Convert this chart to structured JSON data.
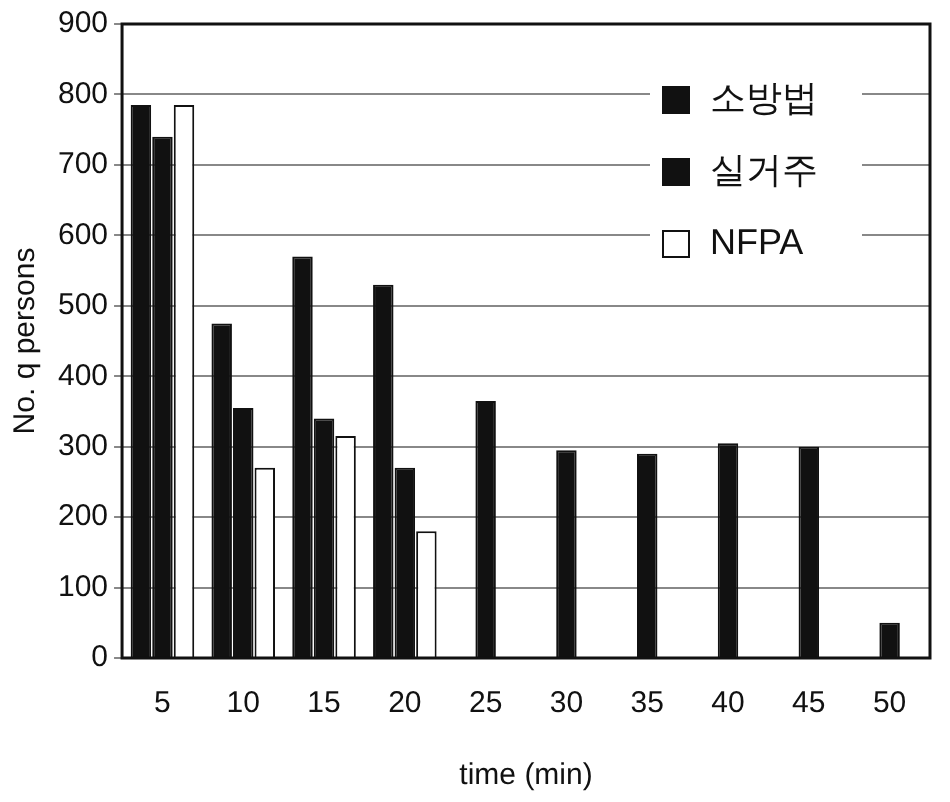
{
  "chart_data": {
    "type": "bar",
    "xlabel": "time (min)",
    "ylabel": "No. q persons",
    "categories": [
      "5",
      "10",
      "15",
      "20",
      "25",
      "30",
      "35",
      "40",
      "45",
      "50"
    ],
    "series": [
      {
        "name": "소방법",
        "color": "#111111",
        "values": [
          785,
          475,
          570,
          530,
          null,
          null,
          null,
          null,
          null,
          null
        ]
      },
      {
        "name": "실거주",
        "color": "#111111",
        "values": [
          740,
          355,
          340,
          270,
          365,
          295,
          290,
          305,
          300,
          50
        ]
      },
      {
        "name": "NFPA",
        "color": "#ffffff",
        "values": [
          785,
          270,
          315,
          180,
          null,
          null,
          null,
          null,
          null,
          null
        ]
      }
    ],
    "ylim": [
      0,
      900
    ],
    "yticks": [
      0,
      100,
      200,
      300,
      400,
      500,
      600,
      700,
      800,
      900
    ],
    "grid": "y",
    "legend": "top right"
  }
}
